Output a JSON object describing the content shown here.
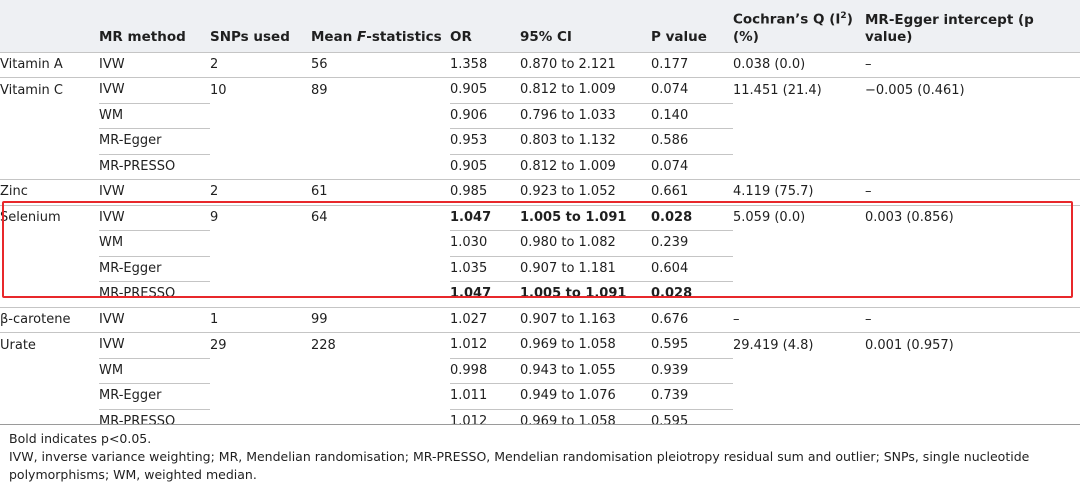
{
  "headers": {
    "exposure": "",
    "mr_method": "MR method",
    "snps": "SNPs used",
    "mean_f_prefix": "Mean ",
    "mean_f_italic": "F",
    "mean_f_suffix": "-statistics",
    "or": "OR",
    "ci": "95% CI",
    "p": "P value",
    "cochran_line1_prefix": "Cochran’s Q (I",
    "cochran_sup": "2",
    "cochran_line1_suffix": ")",
    "cochran_line2": "(%)",
    "egger": "MR-Egger intercept (p value)"
  },
  "groups": [
    {
      "exposure": "Vitamin A",
      "snps": "2",
      "mean_f": "56",
      "cochran": "0.038 (0.0)",
      "egger": "–",
      "rows": [
        {
          "method": "IVW",
          "or": "1.358",
          "ci": "0.870 to 2.121",
          "p": "0.177",
          "bold": false
        }
      ]
    },
    {
      "exposure": "Vitamin C",
      "snps": "10",
      "mean_f": "89",
      "cochran": "11.451 (21.4)",
      "egger": "−0.005 (0.461)",
      "rows": [
        {
          "method": "IVW",
          "or": "0.905",
          "ci": "0.812 to 1.009",
          "p": "0.074",
          "bold": false
        },
        {
          "method": "WM",
          "or": "0.906",
          "ci": "0.796 to 1.033",
          "p": "0.140",
          "bold": false
        },
        {
          "method": "MR-Egger",
          "or": "0.953",
          "ci": "0.803 to 1.132",
          "p": "0.586",
          "bold": false
        },
        {
          "method": "MR-PRESSO",
          "or": "0.905",
          "ci": "0.812 to 1.009",
          "p": "0.074",
          "bold": false
        }
      ]
    },
    {
      "exposure": "Zinc",
      "snps": "2",
      "mean_f": "61",
      "cochran": "4.119 (75.7)",
      "egger": "–",
      "rows": [
        {
          "method": "IVW",
          "or": "0.985",
          "ci": "0.923 to 1.052",
          "p": "0.661",
          "bold": false
        }
      ]
    },
    {
      "exposure": "Selenium",
      "snps": "9",
      "mean_f": "64",
      "cochran": "5.059 (0.0)",
      "egger": "0.003 (0.856)",
      "rows": [
        {
          "method": "IVW",
          "or": "1.047",
          "ci": "1.005 to 1.091",
          "p": "0.028",
          "bold": true
        },
        {
          "method": "WM",
          "or": "1.030",
          "ci": "0.980 to 1.082",
          "p": "0.239",
          "bold": false
        },
        {
          "method": "MR-Egger",
          "or": "1.035",
          "ci": "0.907 to 1.181",
          "p": "0.604",
          "bold": false
        },
        {
          "method": "MR-PRESSO",
          "or": "1.047",
          "ci": "1.005 to 1.091",
          "p": "0.028",
          "bold": true
        }
      ]
    },
    {
      "exposure": "β-carotene",
      "snps": "1",
      "mean_f": "99",
      "cochran": "–",
      "egger": "–",
      "rows": [
        {
          "method": "IVW",
          "or": "1.027",
          "ci": "0.907 to 1.163",
          "p": "0.676",
          "bold": false
        }
      ]
    },
    {
      "exposure": "Urate",
      "snps": "29",
      "mean_f": "228",
      "cochran": "29.419 (4.8)",
      "egger": "0.001 (0.957)",
      "rows": [
        {
          "method": "IVW",
          "or": "1.012",
          "ci": "0.969 to 1.058",
          "p": "0.595",
          "bold": false
        },
        {
          "method": "WM",
          "or": "0.998",
          "ci": "0.943 to 1.055",
          "p": "0.939",
          "bold": false
        },
        {
          "method": "MR-Egger",
          "or": "1.011",
          "ci": "0.949 to 1.076",
          "p": "0.739",
          "bold": false
        },
        {
          "method": "MR-PRESSO",
          "or": "1.012",
          "ci": "0.969 to 1.058",
          "p": "0.595",
          "bold": false
        }
      ]
    }
  ],
  "highlight_group": "Selenium",
  "highlight_color": "#e8282b",
  "footnotes": {
    "bold_note": "Bold indicates p<0.05.",
    "abbreviations": "IVW, inverse variance weighting; MR, Mendelian randomisation; MR-PRESSO, Mendelian randomisation pleiotropy residual sum and outlier; SNPs, single nucleotide polymorphisms; WM, weighted median."
  }
}
